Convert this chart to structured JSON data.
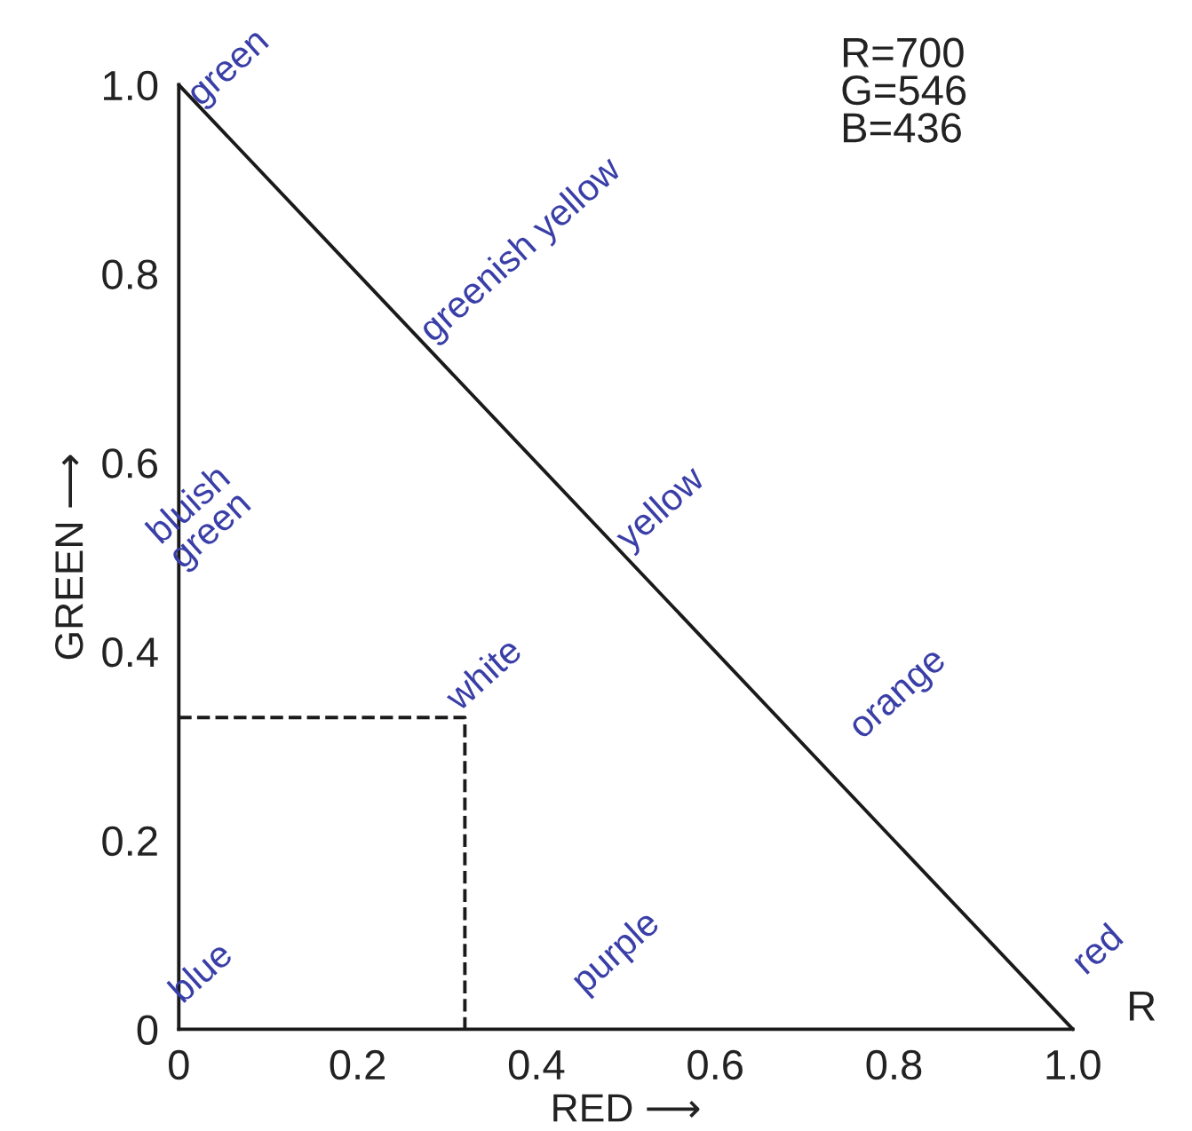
{
  "chart_data": {
    "type": "line",
    "xlabel": "RED ⟶",
    "ylabel": "GREEN ⟶",
    "xlim": [
      0,
      1
    ],
    "ylim": [
      0,
      1
    ],
    "xticks": [
      0,
      0.2,
      0.4,
      0.6,
      0.8,
      {
        "value": 1,
        "label": "1.0"
      }
    ],
    "yticks": [
      0,
      0.2,
      0.4,
      0.6,
      0.8,
      {
        "value": 1,
        "label": "1.0"
      }
    ],
    "grid": false,
    "legend": false,
    "series": [
      {
        "color": "#1a1a1a",
        "line_style": "solid",
        "x": [
          0,
          1
        ],
        "values": [
          1,
          0
        ]
      },
      {
        "color": "#1a1a1a",
        "line_style": "dashed",
        "x": [
          0,
          0.32,
          0.32
        ],
        "values": [
          0.33,
          0.33,
          0
        ]
      }
    ],
    "annotations": [
      {
        "text": "green",
        "x": 0.03,
        "y": 0.97
      },
      {
        "text": "greenish yellow",
        "x": 0.29,
        "y": 0.72
      },
      {
        "text": "yellow",
        "x": 0.51,
        "y": 0.5
      },
      {
        "text": "white",
        "x": 0.32,
        "y": 0.33
      },
      "orange",
      "red",
      "bluish\ngreen",
      "blue",
      "purple",
      "R=700\nG=546\nB=436",
      "R"
    ]
  }
}
